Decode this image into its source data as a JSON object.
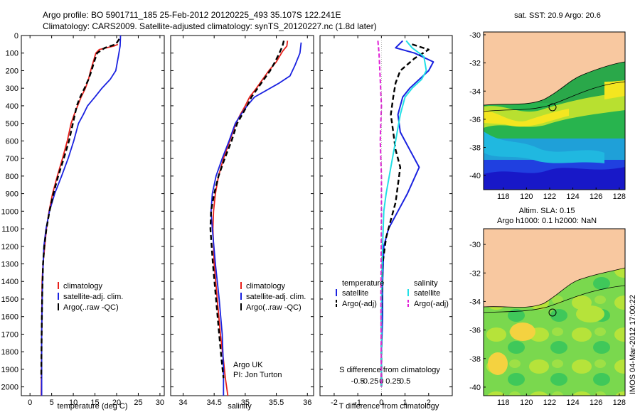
{
  "header": {
    "title_line1": "Argo profile: BO 5901711_185 25-Feb-2012 20120225_493 35.107S 122.241E",
    "title_line2": "Climatology: CARS2009. Satellite-adjusted climatology: synTS_20120227.nc (1.8d later)"
  },
  "colors": {
    "climatology": "#e8211c",
    "satellite": "#1a22e0",
    "argo": "#000000",
    "satellite_s": "#22e0e6",
    "argo_s_adj": "#e020d6",
    "land": "#f8c8a0"
  },
  "chart_data": [
    {
      "type": "line",
      "panel": "temperature",
      "xlabel": "temperature (deg C)",
      "ylabel": "",
      "xlim": [
        -2,
        31
      ],
      "ylim": [
        2050,
        0
      ],
      "xticks": [
        0,
        5,
        10,
        15,
        20,
        25,
        30
      ],
      "yticks": [
        0,
        100,
        200,
        300,
        400,
        500,
        600,
        700,
        800,
        900,
        1000,
        1100,
        1200,
        1300,
        1400,
        1500,
        1600,
        1700,
        1800,
        1900,
        2000
      ],
      "legend": [
        "climatology",
        "satellite-adj. clim.",
        "Argo(..raw -QC)"
      ],
      "series": [
        {
          "name": "climatology",
          "color": "#e8211c",
          "x": [
            20.3,
            19.4,
            16,
            15.2,
            14.6,
            14,
            13.5,
            12.8,
            11.8,
            11,
            10.2,
            9.5,
            8.6,
            7.5,
            6.3,
            5.2,
            4.4,
            3.8,
            3.4,
            3,
            2.8,
            2.6
          ],
          "y": [
            50,
            60,
            80,
            100,
            150,
            200,
            250,
            300,
            350,
            400,
            450,
            500,
            600,
            700,
            800,
            900,
            1000,
            1100,
            1200,
            1300,
            1400,
            2050
          ]
        },
        {
          "name": "satellite-adj. clim.",
          "color": "#1a22e0",
          "x": [
            20.9,
            20.8,
            20.4,
            19.8,
            18.5,
            16.6,
            15,
            13.3,
            12.3,
            11.2,
            10.1,
            8.8,
            7.3,
            5.7,
            4.5,
            3.7,
            3.2,
            2.9,
            2.7,
            2.7
          ],
          "y": [
            0,
            60,
            120,
            200,
            250,
            300,
            350,
            400,
            450,
            500,
            600,
            700,
            800,
            900,
            1000,
            1100,
            1200,
            1400,
            1700,
            2050
          ]
        },
        {
          "name": "Argo(..raw -QC)",
          "color": "#000000",
          "x": [
            20.6,
            19.8,
            17.3,
            15.5,
            14.8,
            14.2,
            13.5,
            12.6,
            11.6,
            10.8,
            9.9,
            9,
            7.8,
            6.5,
            5.4,
            4.5,
            3.8,
            3.3,
            3,
            2.8,
            2.7,
            2.6
          ],
          "y": [
            20,
            50,
            70,
            100,
            150,
            200,
            250,
            300,
            350,
            400,
            500,
            600,
            700,
            800,
            900,
            1000,
            1100,
            1200,
            1300,
            1500,
            1700,
            1950
          ]
        }
      ]
    },
    {
      "type": "line",
      "panel": "salinity",
      "xlabel": "salinity",
      "ylabel": "",
      "xlim": [
        33.8,
        36.1
      ],
      "ylim": [
        2050,
        0
      ],
      "xticks": [
        34,
        34.5,
        35,
        35.5,
        36
      ],
      "legend": [
        "climatology",
        "satellite-adj. clim.",
        "Argo(..raw -QC)"
      ],
      "annotations": [
        "Argo UK",
        "PI: Jon Turton"
      ],
      "series": [
        {
          "name": "climatology",
          "color": "#e8211c",
          "x": [
            35.68,
            35.67,
            35.6,
            35.5,
            35.38,
            35.28,
            35.18,
            35.07,
            35.0,
            34.92,
            34.85,
            34.75,
            34.65,
            34.57,
            34.52,
            34.49,
            34.48,
            34.5,
            34.55,
            34.6,
            34.65,
            34.68,
            34.72
          ],
          "y": [
            30,
            60,
            90,
            150,
            200,
            250,
            300,
            350,
            400,
            450,
            500,
            600,
            700,
            800,
            900,
            1000,
            1100,
            1300,
            1500,
            1700,
            1850,
            1950,
            2050
          ]
        },
        {
          "name": "satellite-adj. clim.",
          "color": "#1a22e0",
          "x": [
            35.9,
            35.88,
            35.8,
            35.72,
            35.55,
            35.35,
            35.15,
            35.03,
            34.93,
            34.84,
            34.74,
            34.63,
            34.53,
            34.47,
            34.45,
            34.47,
            34.52,
            34.58,
            34.63,
            34.65,
            34.65
          ],
          "y": [
            40,
            100,
            170,
            230,
            270,
            310,
            350,
            400,
            450,
            500,
            600,
            700,
            800,
            900,
            1000,
            1100,
            1300,
            1500,
            1700,
            1900,
            2050
          ]
        },
        {
          "name": "Argo(..raw -QC)",
          "color": "#000000",
          "x": [
            35.62,
            35.6,
            35.55,
            35.48,
            35.4,
            35.3,
            35.2,
            35.1,
            35.03,
            34.95,
            34.87,
            34.78,
            34.67,
            34.57,
            34.5,
            34.45,
            34.44,
            34.48,
            34.53,
            34.58,
            34.62,
            34.65
          ],
          "y": [
            30,
            60,
            100,
            150,
            200,
            250,
            300,
            350,
            400,
            450,
            500,
            600,
            700,
            800,
            900,
            1000,
            1100,
            1300,
            1500,
            1700,
            1850,
            1950
          ]
        }
      ]
    },
    {
      "type": "line",
      "panel": "difference",
      "xlabel": "T difference from climatology",
      "xlabel_top": "S difference from climatology",
      "xlim": [
        -2.6,
        3.0
      ],
      "ylim": [
        2050,
        0
      ],
      "xticks": [
        -2,
        -1,
        0,
        1,
        2
      ],
      "xticks_s_labels": [
        "-0.5",
        "-0.25",
        "0",
        "0.25",
        "0.5"
      ],
      "legend_titles": [
        "temperature",
        "salinity"
      ],
      "legend": [
        "satellite",
        "Argo(-adj)",
        "satellite",
        "Argo(-adj)"
      ],
      "series": [
        {
          "name": "satellite",
          "color": "#1a22e0",
          "x": [
            0.9,
            0.6,
            1.4,
            2.2,
            2.0,
            1.6,
            1.2,
            0.9,
            0.7,
            0.8,
            1.2,
            1.6,
            1.1,
            0.7,
            0.3,
            0.1,
            0.05,
            0.05,
            0.0,
            0.0
          ],
          "y": [
            30,
            70,
            100,
            150,
            200,
            250,
            300,
            350,
            450,
            550,
            650,
            750,
            900,
            1000,
            1100,
            1200,
            1400,
            1600,
            1800,
            2000
          ]
        },
        {
          "name": "Argo(-adj)",
          "color": "#000000",
          "x": [
            1.3,
            2.0,
            1.4,
            0.8,
            0.6,
            0.5,
            0.4,
            0.5,
            0.6,
            0.8,
            0.7,
            0.6,
            0.4,
            0.2,
            0.05,
            0.0,
            0.0
          ],
          "y": [
            50,
            80,
            130,
            200,
            270,
            350,
            450,
            550,
            650,
            750,
            850,
            950,
            1050,
            1150,
            1300,
            1600,
            2000
          ]
        },
        {
          "name": "satellite S",
          "color": "#22e0e6",
          "x": [
            1.05,
            1.3,
            1.8,
            1.9,
            1.7,
            1.3,
            1.0,
            0.8,
            0.6,
            0.4,
            0.2,
            0.1,
            0.05,
            0.0,
            0.0
          ],
          "y": [
            30,
            70,
            120,
            200,
            250,
            300,
            350,
            450,
            600,
            750,
            900,
            1000,
            1200,
            1500,
            2000
          ]
        },
        {
          "name": "Argo(-adj) S",
          "color": "#e020d6",
          "x": [
            -0.15,
            -0.1,
            -0.05,
            0.0,
            -0.05,
            0.0,
            0.0,
            -0.02,
            0.0
          ],
          "y": [
            30,
            100,
            250,
            400,
            600,
            800,
            1000,
            1500,
            2000
          ]
        }
      ]
    }
  ],
  "map1": {
    "title": "sat. SST: 20.9 Argo: 20.6",
    "xticks": [
      "118",
      "120",
      "122",
      "124",
      "126",
      "128"
    ],
    "yticks": [
      "-30",
      "-32",
      "-34",
      "-36",
      "-38",
      "-40"
    ]
  },
  "map2": {
    "title_line1": "Altim. SLA: 0.15",
    "title_line2": "Argo h1000: 0.1 h2000: NaN",
    "xticks": [
      "118",
      "120",
      "122",
      "124",
      "126",
      "128"
    ],
    "yticks": [
      "-30",
      "-32",
      "-34",
      "-36",
      "-38",
      "-40"
    ]
  },
  "stamp": "IMOS 04-Mar-2012 17:00:22"
}
